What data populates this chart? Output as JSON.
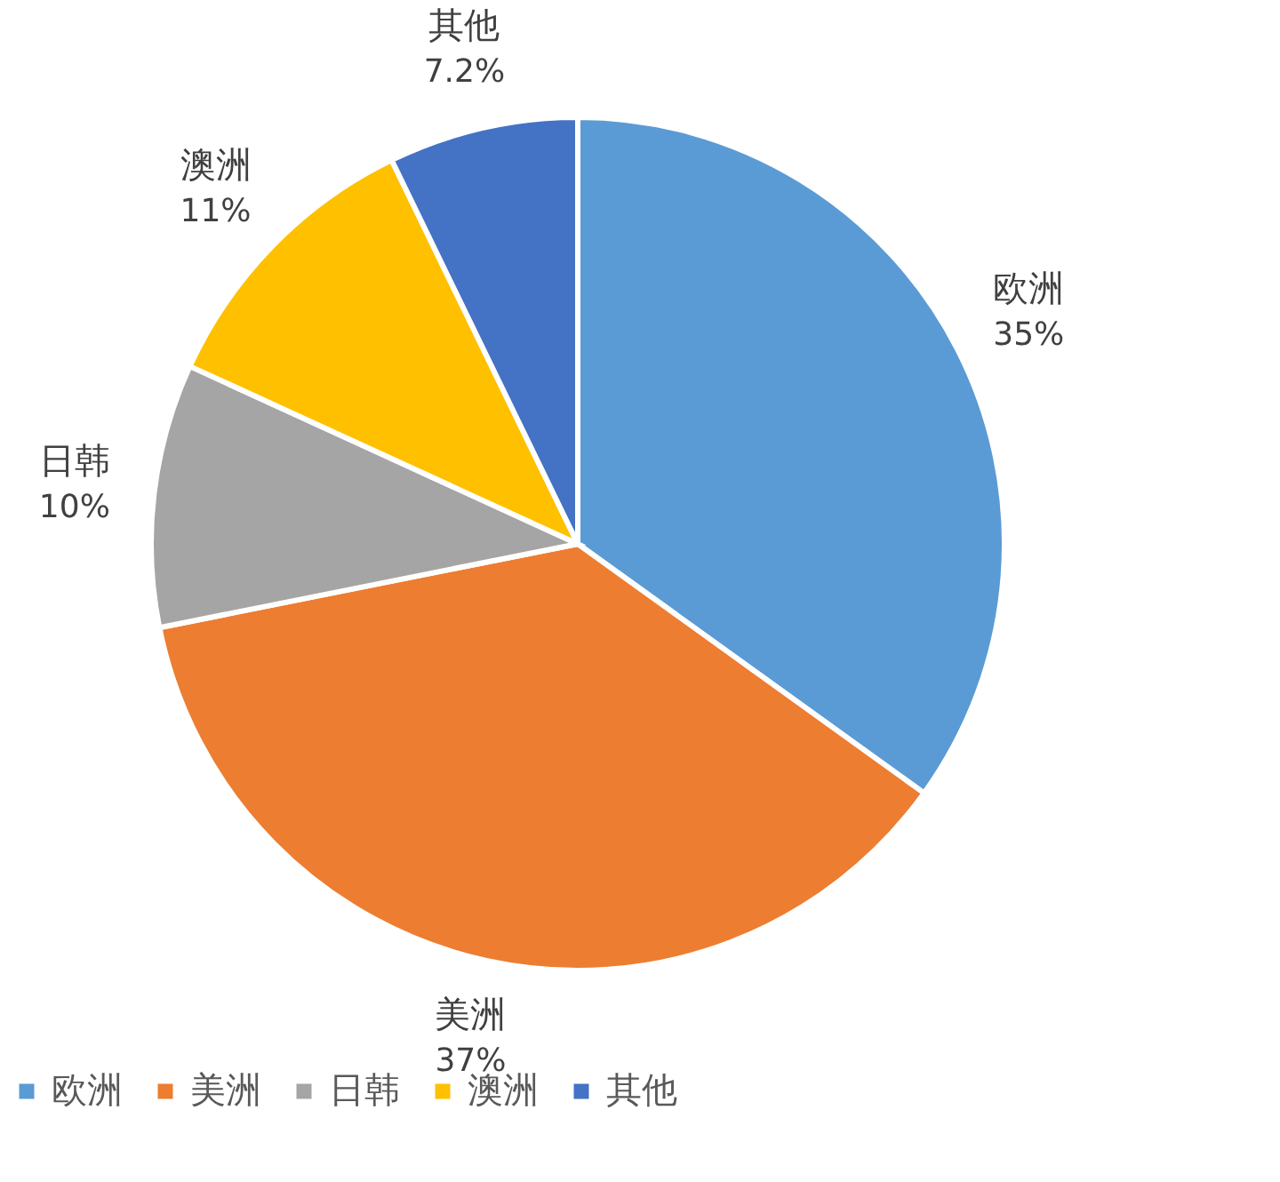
{
  "chart_data": {
    "type": "pie",
    "categories": [
      "欧洲",
      "美洲",
      "日韩",
      "澳洲",
      "其他"
    ],
    "values": [
      35,
      37,
      10,
      11,
      7.2
    ],
    "value_labels": [
      "35%",
      "37%",
      "10%",
      "11%",
      "7.2%"
    ],
    "colors": [
      "#5b9bd5",
      "#ed7d31",
      "#a5a5a5",
      "#ffc000",
      "#4472c4"
    ],
    "legend": "bottom"
  }
}
